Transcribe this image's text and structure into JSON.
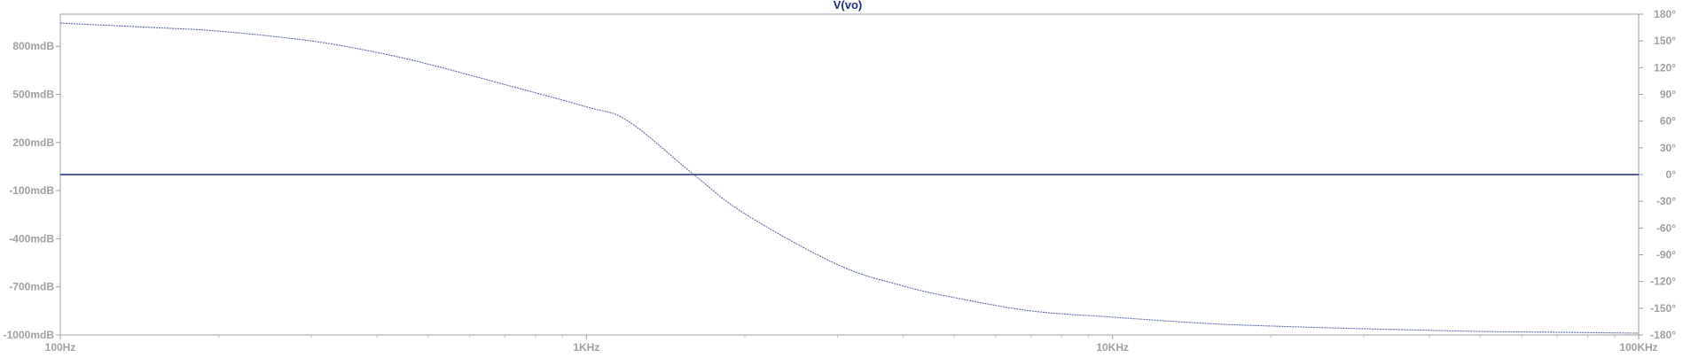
{
  "chart_data": {
    "type": "line",
    "title": "V(vo)",
    "xscale": "log",
    "xlim": [
      100,
      100000
    ],
    "x_ticks": [
      {
        "value": 100,
        "label": "100Hz"
      },
      {
        "value": 1000,
        "label": "1KHz"
      },
      {
        "value": 10000,
        "label": "10KHz"
      },
      {
        "value": 100000,
        "label": "100KHz"
      }
    ],
    "left_axis": {
      "ylim": [
        -1000,
        1000
      ],
      "ticks": [
        {
          "value": 800,
          "label": "800mdB"
        },
        {
          "value": 500,
          "label": "500mdB"
        },
        {
          "value": 200,
          "label": "200mdB"
        },
        {
          "value": -100,
          "label": "-100mdB"
        },
        {
          "value": -400,
          "label": "-400mdB"
        },
        {
          "value": -700,
          "label": "-700mdB"
        },
        {
          "value": -1000,
          "label": "-1000mdB"
        }
      ]
    },
    "right_axis": {
      "ylim": [
        -180,
        180
      ],
      "ticks": [
        {
          "value": 180,
          "label": "180°"
        },
        {
          "value": 150,
          "label": "150°"
        },
        {
          "value": 120,
          "label": "120°"
        },
        {
          "value": 90,
          "label": "90°"
        },
        {
          "value": 60,
          "label": "60°"
        },
        {
          "value": 30,
          "label": "30°"
        },
        {
          "value": 0,
          "label": "0°"
        },
        {
          "value": -30,
          "label": "-30°"
        },
        {
          "value": -60,
          "label": "-60°"
        },
        {
          "value": -90,
          "label": "-90°"
        },
        {
          "value": -120,
          "label": "-120°"
        },
        {
          "value": -150,
          "label": "-150°"
        },
        {
          "value": -180,
          "label": "-180°"
        }
      ]
    },
    "series": [
      {
        "color": "#1c2a80",
        "axis": "left",
        "x": [
          100,
          1000,
          10000,
          100000
        ],
        "y": [
          0,
          0,
          0,
          0
        ]
      },
      {
        "color": "#5a6aa8",
        "axis": "right",
        "x": [
          100,
          150,
          200,
          300,
          400,
          500,
          700,
          1000,
          1200,
          1600,
          2000,
          3000,
          4000,
          5000,
          7000,
          10000,
          15000,
          20000,
          30000,
          50000,
          70000,
          100000
        ],
        "y": [
          170,
          165,
          161,
          150,
          137,
          124,
          101,
          76,
          60,
          0,
          -44,
          -101,
          -125,
          -138,
          -153,
          -160,
          -167,
          -170,
          -173,
          -176,
          -177,
          -178
        ]
      }
    ],
    "grid": false,
    "legend": "none"
  }
}
